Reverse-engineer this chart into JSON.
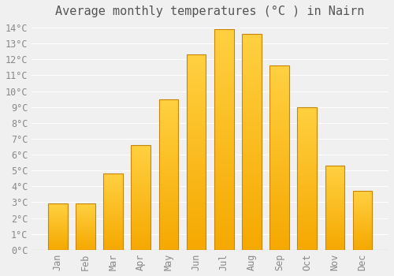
{
  "title": "Average monthly temperatures (°C ) in Nairn",
  "months": [
    "Jan",
    "Feb",
    "Mar",
    "Apr",
    "May",
    "Jun",
    "Jul",
    "Aug",
    "Sep",
    "Oct",
    "Nov",
    "Dec"
  ],
  "values": [
    2.9,
    2.9,
    4.8,
    6.6,
    9.5,
    12.3,
    13.9,
    13.6,
    11.6,
    9.0,
    5.3,
    3.7
  ],
  "bar_color_bottom": "#F5A800",
  "bar_color_top": "#FFD040",
  "bar_edge_color": "#C8850A",
  "background_color": "#F0F0F0",
  "grid_color": "#FFFFFF",
  "ylim_max": 14,
  "yticks": [
    0,
    1,
    2,
    3,
    4,
    5,
    6,
    7,
    8,
    9,
    10,
    11,
    12,
    13,
    14
  ],
  "title_fontsize": 11,
  "tick_fontsize": 8.5,
  "bar_width": 0.7,
  "n_gradient_steps": 100
}
